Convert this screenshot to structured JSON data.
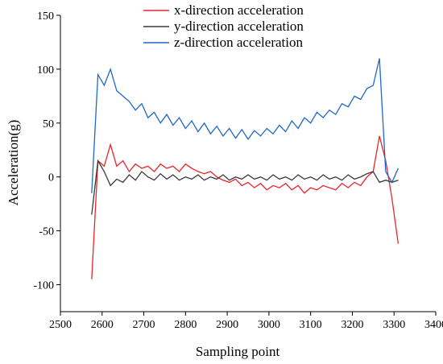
{
  "chart_data": {
    "type": "line",
    "xlabel": "Sampling point",
    "ylabel": "Acceleration(g)",
    "x": [
      2575,
      2590,
      2605,
      2620,
      2635,
      2650,
      2665,
      2680,
      2695,
      2710,
      2725,
      2740,
      2755,
      2770,
      2785,
      2800,
      2815,
      2830,
      2845,
      2860,
      2875,
      2890,
      2905,
      2920,
      2935,
      2950,
      2965,
      2980,
      2995,
      3010,
      3025,
      3040,
      3055,
      3070,
      3085,
      3100,
      3115,
      3130,
      3145,
      3160,
      3175,
      3190,
      3205,
      3220,
      3235,
      3250,
      3265,
      3280,
      3295,
      3310
    ],
    "series": [
      {
        "name": "x-direction acceleration",
        "color": "#e8262d",
        "values": [
          -95,
          15,
          10,
          30,
          10,
          15,
          5,
          12,
          8,
          10,
          5,
          12,
          8,
          10,
          5,
          12,
          8,
          5,
          3,
          5,
          0,
          -3,
          -5,
          -2,
          -8,
          -5,
          -10,
          -6,
          -12,
          -8,
          -10,
          -6,
          -12,
          -8,
          -15,
          -10,
          -12,
          -8,
          -10,
          -12,
          -6,
          -10,
          -5,
          -8,
          0,
          5,
          38,
          15,
          -20,
          -62
        ]
      },
      {
        "name": "y-direction acceleration",
        "color": "#3a3a3a",
        "values": [
          -35,
          15,
          5,
          -8,
          -2,
          -5,
          2,
          -3,
          5,
          0,
          -3,
          3,
          -2,
          2,
          -3,
          0,
          -2,
          2,
          -3,
          0,
          -2,
          2,
          -3,
          0,
          -2,
          2,
          -2,
          0,
          -3,
          2,
          -2,
          0,
          -3,
          2,
          -2,
          0,
          -3,
          2,
          -2,
          0,
          -3,
          2,
          -2,
          0,
          3,
          5,
          -5,
          -3,
          -5,
          -3
        ]
      },
      {
        "name": "z-direction acceleration",
        "color": "#1f67c9",
        "values": [
          -15,
          95,
          85,
          100,
          80,
          75,
          70,
          62,
          68,
          55,
          60,
          50,
          58,
          48,
          55,
          45,
          52,
          42,
          50,
          40,
          47,
          38,
          45,
          36,
          44,
          35,
          43,
          38,
          45,
          40,
          48,
          42,
          52,
          45,
          55,
          50,
          60,
          55,
          62,
          58,
          68,
          65,
          75,
          72,
          82,
          85,
          110,
          5,
          -5,
          8
        ]
      }
    ],
    "xlim": [
      2500,
      3400
    ],
    "xticks": [
      2500,
      2600,
      2700,
      2800,
      2900,
      3000,
      3100,
      3200,
      3300,
      3400
    ],
    "ylim": [
      -125,
      150
    ],
    "yticks": [
      -100,
      -50,
      0,
      50,
      100,
      150
    ],
    "legend": "top"
  }
}
